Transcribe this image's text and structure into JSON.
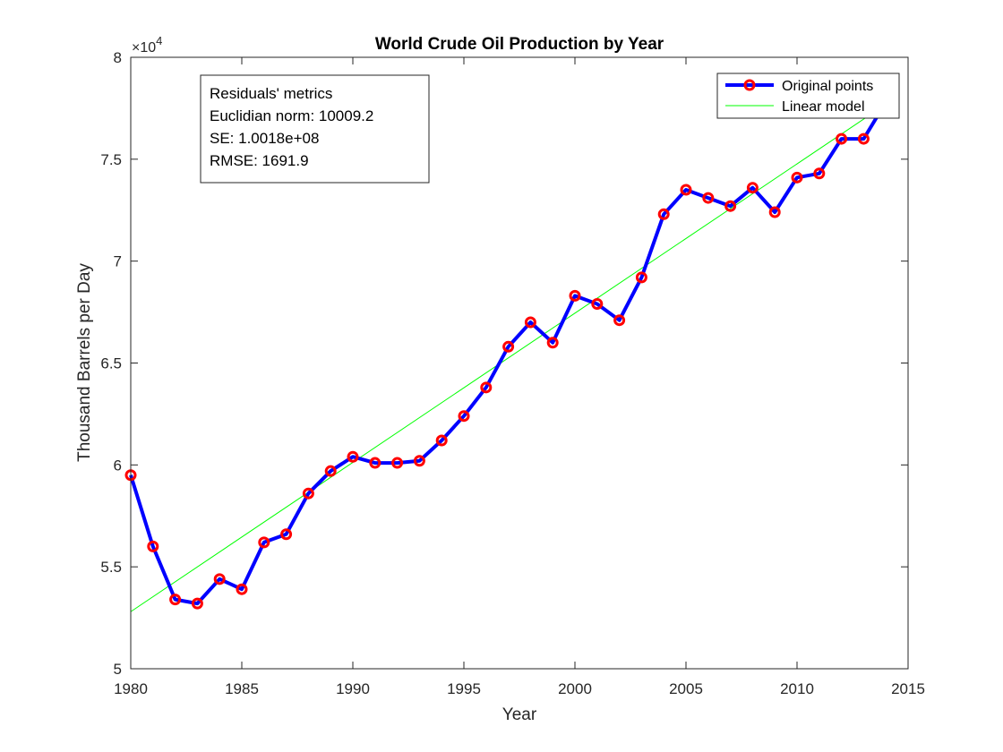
{
  "colors": {
    "series_line": "#0000ff",
    "marker_edge": "#ff0000",
    "model_line": "#00ff00",
    "axis": "#262626",
    "background": "#ffffff"
  },
  "metrics_box": {
    "lines": [
      "Residuals' metrics",
      "Euclidian norm: 10009.2",
      "SE: 1.0018e+08",
      "RMSE: 1691.9"
    ]
  },
  "chart_data": {
    "type": "line",
    "title": "World Crude Oil Production by Year",
    "xlabel": "Year",
    "ylabel": "Thousand Barrels per Day",
    "y_exponent_label": "×10",
    "y_exponent_power": "4",
    "y_scale": 10000,
    "xlim": [
      1980,
      2015
    ],
    "ylim": [
      50000,
      80000
    ],
    "x_ticks": [
      1980,
      1985,
      1990,
      1995,
      2000,
      2005,
      2010,
      2015
    ],
    "y_ticks": [
      5,
      5.5,
      6,
      6.5,
      7,
      7.5,
      8
    ],
    "y_tick_labels": [
      "5",
      "5.5",
      "6",
      "6.5",
      "7",
      "7.5",
      "8"
    ],
    "grid": false,
    "legend_position": "top-right",
    "series": [
      {
        "name": "Original points",
        "style": "line-with-circle-markers",
        "x": [
          1980,
          1981,
          1982,
          1983,
          1984,
          1985,
          1986,
          1987,
          1988,
          1989,
          1990,
          1991,
          1992,
          1993,
          1994,
          1995,
          1996,
          1997,
          1998,
          1999,
          2000,
          2001,
          2002,
          2003,
          2004,
          2005,
          2006,
          2007,
          2008,
          2009,
          2010,
          2011,
          2012,
          2013,
          2014
        ],
        "y": [
          59500,
          56000,
          53400,
          53200,
          54400,
          53900,
          56200,
          56600,
          58600,
          59700,
          60400,
          60100,
          60100,
          60200,
          61200,
          62400,
          63800,
          65800,
          67000,
          66000,
          68300,
          67900,
          67100,
          69200,
          72300,
          73500,
          73100,
          72700,
          73600,
          72400,
          74100,
          74300,
          76000,
          76000,
          77800
        ]
      },
      {
        "name": "Linear model",
        "style": "thin-line",
        "x": [
          1980,
          2014
        ],
        "y": [
          52800,
          77700
        ]
      }
    ]
  }
}
